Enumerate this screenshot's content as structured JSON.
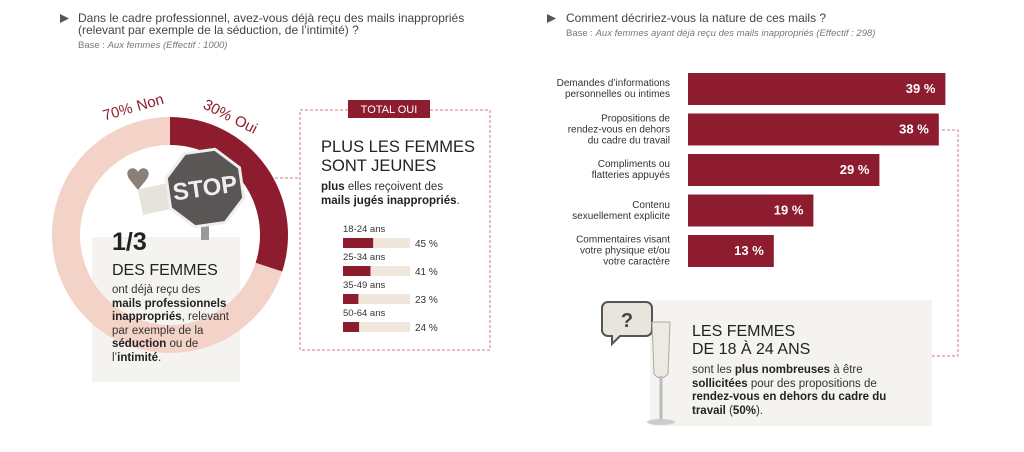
{
  "left_question": {
    "title": "Dans le cadre professionnel, avez-vous déjà reçu des mails inappropriés\n(relevant par exemple de la séduction, de l’intimité) ?",
    "base_label": "Base :",
    "base_value": "Aux femmes (Effectif : 1000)"
  },
  "right_question": {
    "title": "Comment décririez-vous la nature de ces mails ?",
    "base_label": "Base :",
    "base_value": "Aux femmes ayant déjà reçu des mails inappropriés (Effectif : 298)"
  },
  "chart_data": [
    {
      "type": "pie",
      "donut": true,
      "categories": [
        "Non",
        "Oui"
      ],
      "values": [
        70,
        30
      ],
      "value_labels": [
        "70%",
        "30%"
      ],
      "colors": [
        "#f3d2c7",
        "#8c1c2e"
      ]
    },
    {
      "type": "bar",
      "orientation": "horizontal",
      "tag": "TOTAL OUI",
      "title": "PLUS LES FEMMES\nSONT JEUNES",
      "subtitle": [
        "plus",
        " elles reçoivent des ",
        "mails jugés inappropriés",
        "."
      ],
      "categories": [
        "18-24 ans",
        "25-34 ans",
        "35-49 ans",
        "50-64 ans"
      ],
      "values": [
        45,
        41,
        23,
        24
      ],
      "value_labels": [
        "45 %",
        "41 %",
        "23 %",
        "24 %"
      ],
      "color": "#8c1c2e",
      "track_color": "#efe6dc"
    },
    {
      "type": "bar",
      "orientation": "horizontal",
      "categories": [
        "Demandes d’informations\npersonnelles ou intimes",
        "Propositions de\nrendez-vous en dehors\ndu cadre du travail",
        "Compliments ou\nflatteries appuyés",
        "Contenu\nsexuellement explicite",
        "Commentaires visant\nvotre physique et/ou\nvotre caractère"
      ],
      "values": [
        39,
        38,
        29,
        19,
        13
      ],
      "value_labels": [
        "39 %",
        "38 %",
        "29 %",
        "19 %",
        "13 %"
      ],
      "color": "#8c1c2e"
    }
  ],
  "stat_box": {
    "icon_text": "STOP",
    "fraction": "1/3",
    "headline": "DES FEMMES",
    "body": [
      "ont déjà reçu des ",
      "mails professionnels inappropriés",
      ", relevant par exemple de la ",
      "séduction",
      " ou de l’",
      "intimité",
      "."
    ]
  },
  "callout": {
    "icon_text": "?",
    "headline": "LES FEMMES\nDE 18 À 24 ANS",
    "body": [
      "sont les ",
      "plus nombreuses",
      " à être ",
      "sollicitées",
      " pour des propositions de ",
      "rendez-vous en dehors du cadre du travail",
      " (",
      "50%",
      ")."
    ]
  }
}
